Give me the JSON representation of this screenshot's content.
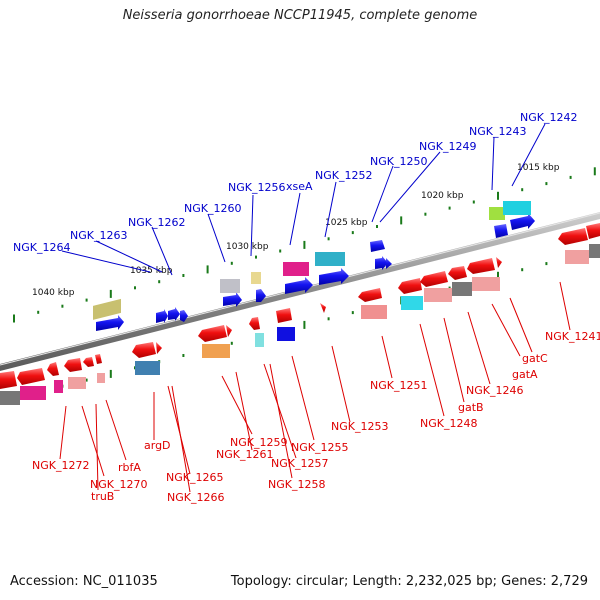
{
  "header": {
    "title": "Neisseria gonorrhoeae NCCP11945, complete genome"
  },
  "footer": {
    "accession": "Accession: NC_011035",
    "summary": "Topology: circular; Length: 2,232,025 bp; Genes: 2,729"
  },
  "scale": {
    "ticks": [
      "1040 kbp",
      "1035 kbp",
      "1030 kbp",
      "1025 kbp",
      "1020 kbp",
      "1015 kbp"
    ]
  },
  "labels": {
    "top": [
      "NGK_1264",
      "NGK_1263",
      "NGK_1262",
      "NGK_1260",
      "NGK_1256",
      "xseA",
      "NGK_1252",
      "NGK_1250",
      "NGK_1249",
      "NGK_1243",
      "NGK_1242"
    ],
    "bottom": [
      "NGK_1272",
      "NGK_1270",
      "truB",
      "rbfA",
      "argD",
      "NGK_1265",
      "NGK_1266",
      "NGK_1259",
      "NGK_1261",
      "NGK_1257",
      "NGK_1258",
      "NGK_1255",
      "NGK_1253",
      "NGK_1251",
      "NGK_1248",
      "gatB",
      "NGK_1246",
      "gatA",
      "gatC",
      "NGK_1241"
    ]
  },
  "colors": {
    "forward_gene": "#0000ee",
    "reverse_gene": "#ee0000",
    "backbone": "#888888",
    "tick": "#1a7a1a",
    "label_top": "#0000cc",
    "label_bottom": "#dd0000"
  }
}
